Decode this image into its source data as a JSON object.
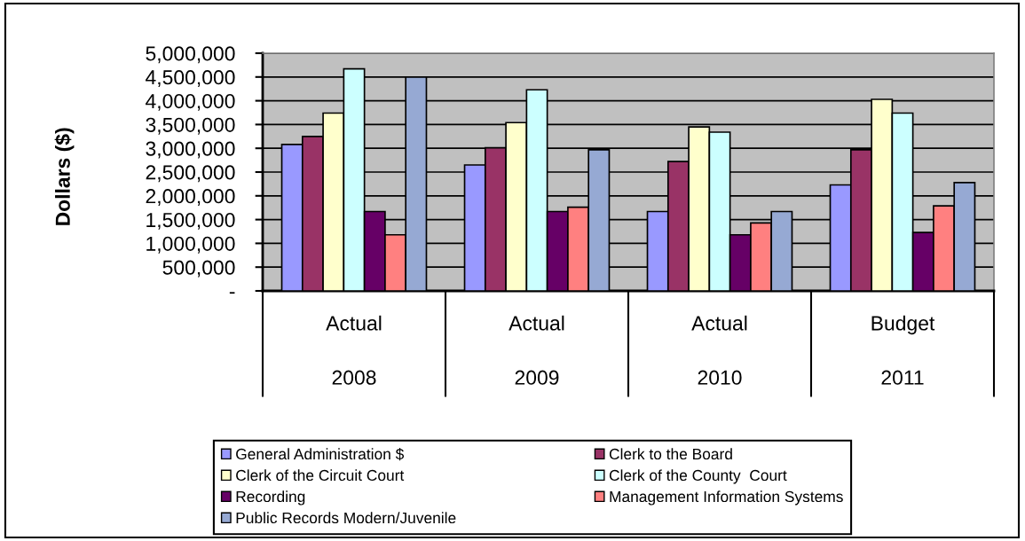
{
  "chart_data": {
    "type": "bar",
    "ylabel": "Dollars ($)",
    "categories": [
      "Actual\n2008",
      "Actual\n2009",
      "Actual\n2010",
      "Budget\n2011"
    ],
    "series": [
      {
        "name": "General Administration $",
        "color": "#9999ff",
        "values": [
          3080000,
          2650000,
          1670000,
          2230000
        ]
      },
      {
        "name": "Clerk to the Board",
        "color": "#993366",
        "values": [
          3250000,
          3010000,
          2720000,
          2970000
        ]
      },
      {
        "name": "Clerk of the Circuit Court",
        "color": "#ffffcc",
        "values": [
          3740000,
          3540000,
          3450000,
          4030000
        ]
      },
      {
        "name": "Clerk of the County  Court",
        "color": "#ccffff",
        "values": [
          4670000,
          4230000,
          3340000,
          3740000
        ]
      },
      {
        "name": "Recording",
        "color": "#660066",
        "values": [
          1670000,
          1670000,
          1180000,
          1230000
        ]
      },
      {
        "name": "Management Information Systems",
        "color": "#ff8080",
        "values": [
          1180000,
          1760000,
          1430000,
          1790000
        ]
      },
      {
        "name": "Public Records Modern/Juvenile",
        "color": "#96a9d3",
        "values": [
          4500000,
          2970000,
          1670000,
          2280000
        ]
      }
    ],
    "ylim": [
      0,
      5000000
    ],
    "yticks": [
      {
        "value": 0,
        "label": "-"
      },
      {
        "value": 500000,
        "label": "500,000"
      },
      {
        "value": 1000000,
        "label": "1,000,000"
      },
      {
        "value": 1500000,
        "label": "1,500,000"
      },
      {
        "value": 2000000,
        "label": "2,000,000"
      },
      {
        "value": 2500000,
        "label": "2,500,000"
      },
      {
        "value": 3000000,
        "label": "3,000,000"
      },
      {
        "value": 3500000,
        "label": "3,500,000"
      },
      {
        "value": 4000000,
        "label": "4,000,000"
      },
      {
        "value": 4500000,
        "label": "4,500,000"
      },
      {
        "value": 5000000,
        "label": "5,000,000"
      }
    ],
    "grid": "y",
    "legend": "bottom"
  }
}
